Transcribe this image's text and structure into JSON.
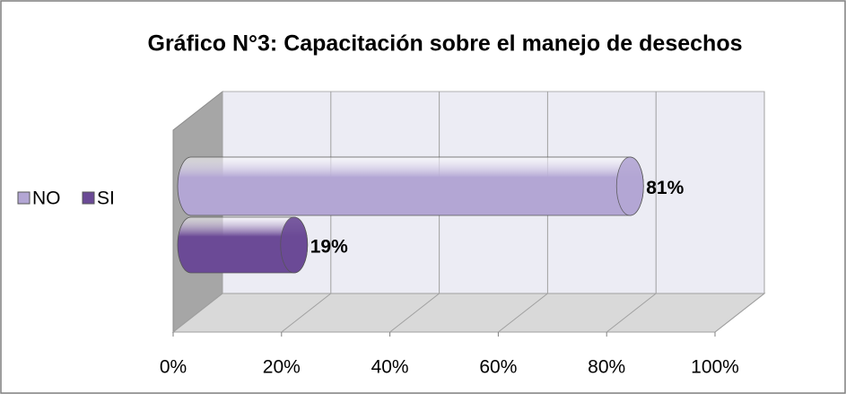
{
  "chart_data": {
    "type": "bar3d_horizontal",
    "title": "Gráfico N°3: Capacitación sobre el manejo de desechos",
    "categories": [
      null
    ],
    "series": [
      {
        "name": "NO",
        "color": "#b3a6d4",
        "values": [
          81
        ],
        "value_labels": [
          "81%"
        ]
      },
      {
        "name": "SI",
        "color": "#6b4a96",
        "values": [
          19
        ],
        "value_labels": [
          "19%"
        ]
      }
    ],
    "xlim": [
      0,
      100
    ],
    "xticks": [
      {
        "value": 0,
        "label": "0%"
      },
      {
        "value": 20,
        "label": "20%"
      },
      {
        "value": 40,
        "label": "40%"
      },
      {
        "value": 60,
        "label": "60%"
      },
      {
        "value": 80,
        "label": "80%"
      },
      {
        "value": 100,
        "label": "100%"
      }
    ],
    "grid": true,
    "legend": "left"
  }
}
